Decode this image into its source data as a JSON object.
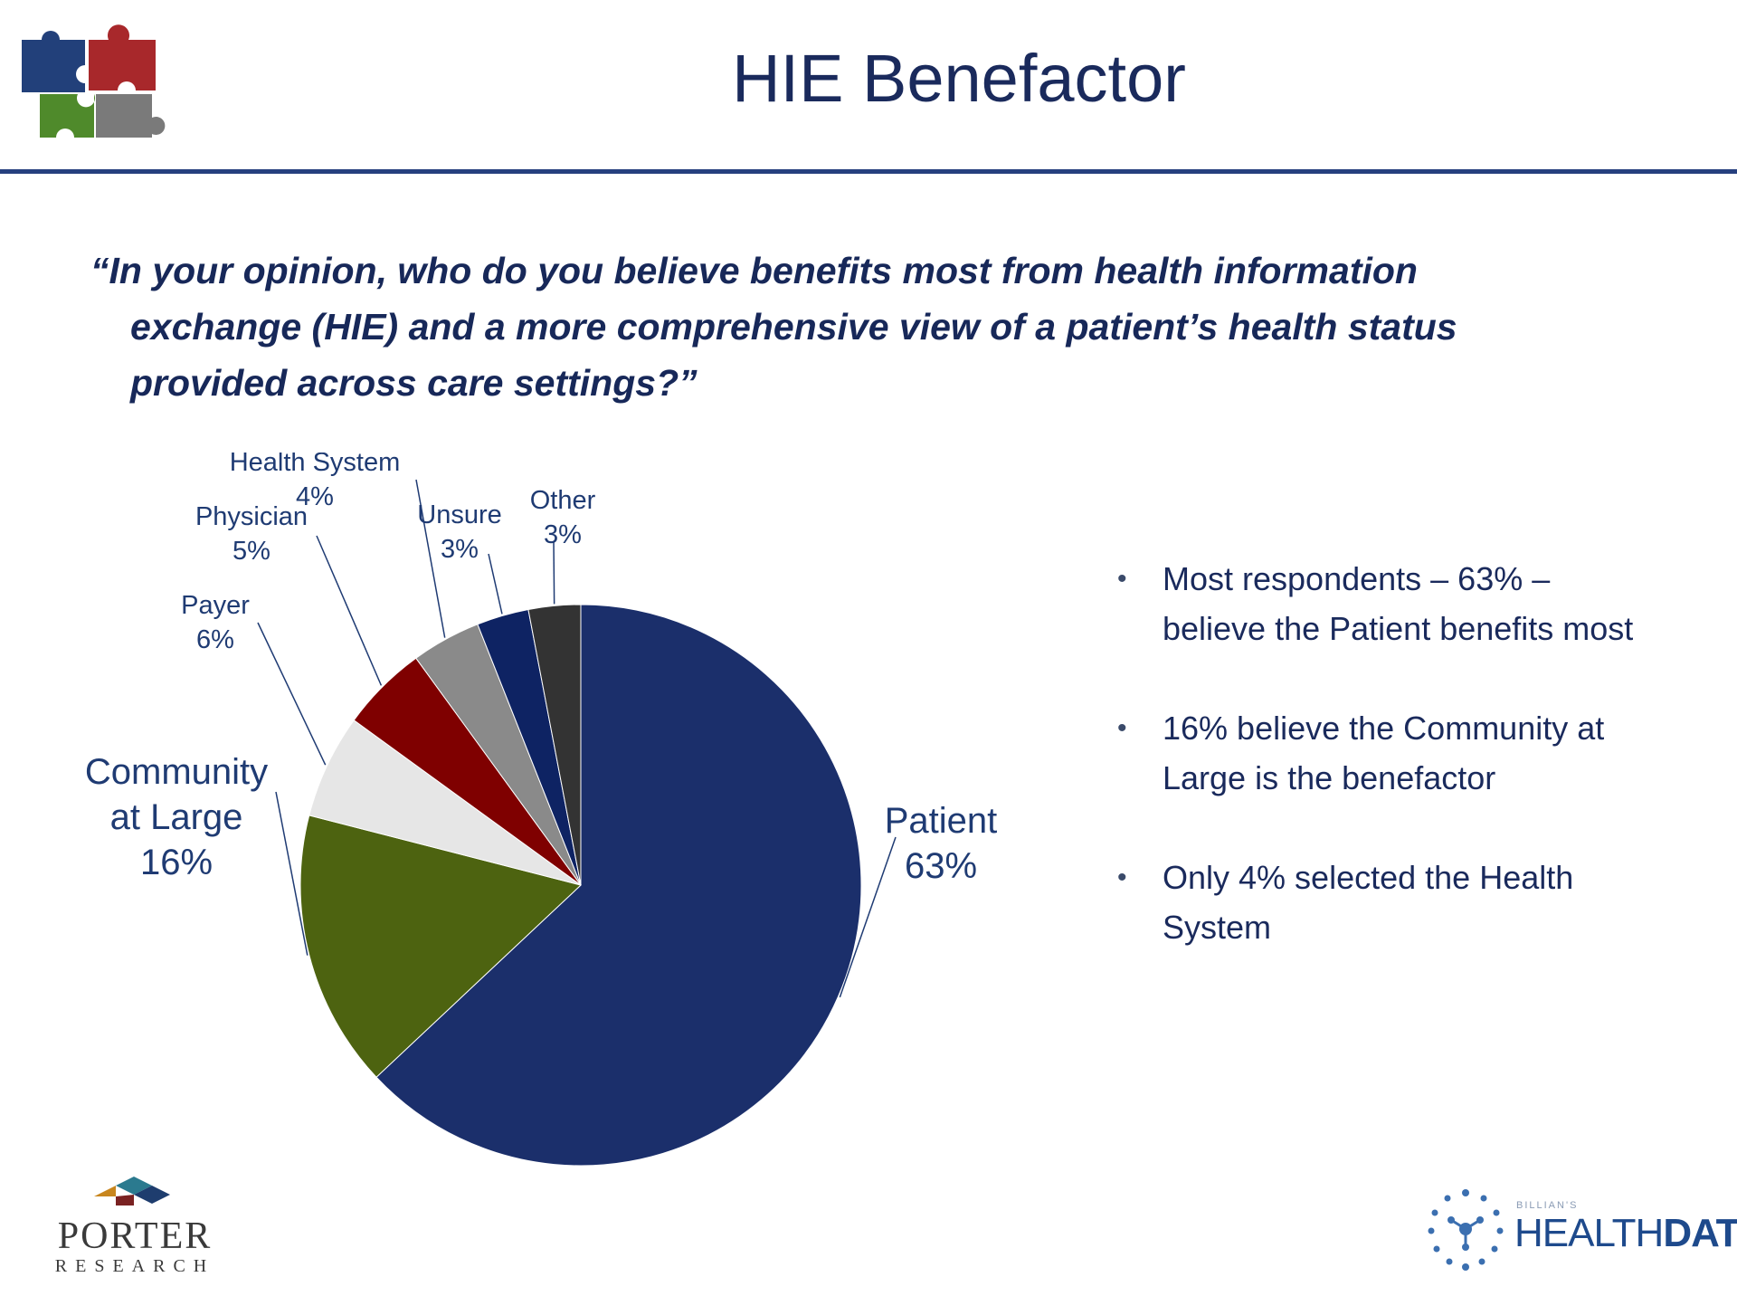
{
  "header": {
    "title": "HIE Benefactor",
    "logo_icon": "puzzle-pieces-icon"
  },
  "question": {
    "lines": [
      "“In your opinion, who do you believe benefits most from health information",
      "exchange (HIE) and a more comprehensive view of a patient’s health status",
      "provided across care settings?”"
    ]
  },
  "chart_data": {
    "type": "pie",
    "start_angle_deg": 0,
    "direction": "clockwise",
    "slices": [
      {
        "label_lines": [
          "Patient"
        ],
        "value": 63,
        "value_label": "63%",
        "color": "#1b2f6b"
      },
      {
        "label_lines": [
          "Community",
          "at Large"
        ],
        "value": 16,
        "value_label": "16%",
        "color": "#4d6310"
      },
      {
        "label_lines": [
          "Payer"
        ],
        "value": 6,
        "value_label": "6%",
        "color": "#e6e6e6"
      },
      {
        "label_lines": [
          "Physician"
        ],
        "value": 5,
        "value_label": "5%",
        "color": "#7f0000"
      },
      {
        "label_lines": [
          "Health System"
        ],
        "value": 4,
        "value_label": "4%",
        "color": "#8a8a8a"
      },
      {
        "label_lines": [
          "Unsure"
        ],
        "value": 3,
        "value_label": "3%",
        "color": "#0e2363"
      },
      {
        "label_lines": [
          "Other"
        ],
        "value": 3,
        "value_label": "3%",
        "color": "#333333"
      }
    ]
  },
  "bullets": [
    {
      "lines": [
        "Most respondents – 63% –",
        "believe the Patient benefits most"
      ]
    },
    {
      "lines": [
        "16% believe the Community at",
        "Large is the benefactor"
      ]
    },
    {
      "lines": [
        "Only 4% selected the Health",
        "System"
      ]
    }
  ],
  "footer": {
    "left_logo": {
      "name": "PORTER",
      "sub": "RESEARCH",
      "icon": "porter-research-logo-icon"
    },
    "right_logo": {
      "small": "BILLIAN'S",
      "main_light": "HEALTH",
      "main_bold": "DATA",
      "icon": "healthdata-network-icon"
    }
  }
}
